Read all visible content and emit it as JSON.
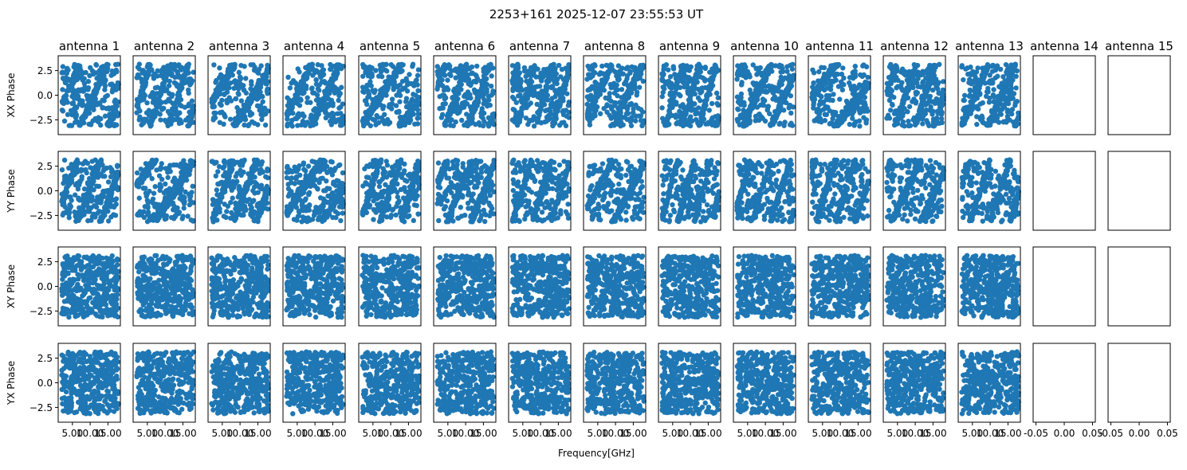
{
  "chart_data": {
    "type": "scatter",
    "title": "2253+161 2025-12-07 23:55:53 UT",
    "xlabel": "Frequency[GHz]",
    "antennas": [
      "antenna 1",
      "antenna 2",
      "antenna 3",
      "antenna 4",
      "antenna 5",
      "antenna 6",
      "antenna 7",
      "antenna 8",
      "antenna 9",
      "antenna 10",
      "antenna 11",
      "antenna 12",
      "antenna 13",
      "antenna 14",
      "antenna 15"
    ],
    "row_ylabels": [
      "XX Phase",
      "YY Phase",
      "XY Phase",
      "YX Phase"
    ],
    "antennas_with_data": 13,
    "marker_color": "#1f77b4",
    "x_range_ghz": [
      2.0,
      18.0
    ],
    "xlim_with_data": [
      1.0,
      18.5
    ],
    "xticks_with_data": [
      5.0,
      10.0,
      15.0
    ],
    "xticklabels_with_data": [
      "5.00",
      "10.00",
      "15.00"
    ],
    "xlim_empty": [
      -0.055,
      0.055
    ],
    "xticks_empty": [
      -0.05,
      0.0,
      0.05
    ],
    "xticklabels_empty": [
      "-0.05",
      "0.00",
      "0.05"
    ],
    "ylim": [
      -4.0,
      4.0
    ],
    "yticks": [
      -2.5,
      0.0,
      2.5
    ],
    "yticklabels": [
      "−2.5",
      "0.0",
      "2.5"
    ],
    "y_range_rad": [
      -3.14159,
      3.14159
    ],
    "points_per_panel": 400,
    "grid": false,
    "legend": "none"
  }
}
